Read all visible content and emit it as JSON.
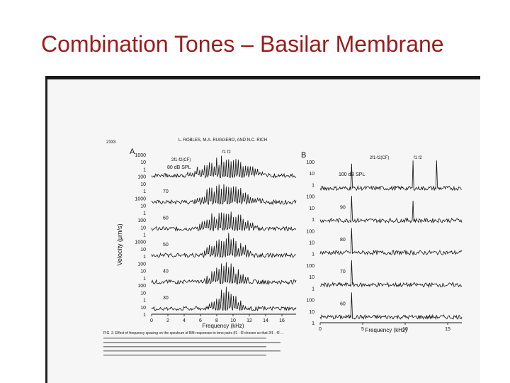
{
  "slide": {
    "title": "Combination Tones – Basilar Membrane"
  },
  "figure": {
    "page_number": "2333",
    "running_head": "L. ROBLES, M.A. RUGGERO, AND N.C. RICH",
    "ylabel": "Velocity (μm/s)",
    "caption": "FIG. 2. Effect of frequency spacing on the spectrum of BM responses to tone pairs (f1 - f2 chosen so that 2f1 - f2 ...",
    "panels": [
      {
        "id": "A",
        "peak_label": "f1 f2",
        "cf_label": "2f1-f2(CF)",
        "top_spl": "80 dB SPL",
        "levels": [
          "",
          "70",
          "60",
          "50",
          "40",
          "30"
        ],
        "ticks": [
          "1000",
          "10",
          "1",
          "100",
          "10",
          "1",
          "1000",
          "10",
          "1",
          "100",
          "10",
          "1",
          "1000",
          "10",
          "1",
          "100",
          "10",
          "1",
          "100",
          "10",
          "1",
          "10",
          "1"
        ],
        "xticks": [
          "0",
          "2",
          "4",
          "6",
          "8",
          "10",
          "12",
          "14",
          "16"
        ],
        "xlabel": "Frequency (kHz)"
      },
      {
        "id": "B",
        "peak_label": "f1 f2",
        "cf_label": "2f1-f2(CF)",
        "top_spl": "100 dB SPL",
        "levels": [
          "",
          "90",
          "80",
          "70",
          "60"
        ],
        "ticks": [
          "100",
          "10",
          "1",
          "100",
          "10",
          "1",
          "100",
          "10",
          "1",
          "100",
          "10",
          "1",
          "100",
          "10",
          "1"
        ],
        "xticks": [
          "0",
          "5",
          "10",
          "15"
        ],
        "xlabel": "Frequency (kHz)"
      }
    ]
  }
}
